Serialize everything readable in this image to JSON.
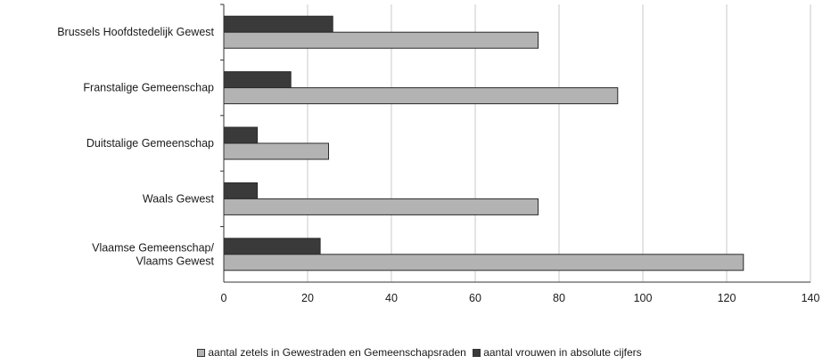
{
  "chart_data": {
    "type": "bar",
    "orientation": "horizontal",
    "categories": [
      "Brussels Hoofdstedelijk Gewest",
      "Franstalige Gemeenschap",
      "Duitstalige Gemeenschap",
      "Waals Gewest",
      "Vlaamse Gemeenschap/ Vlaams Gewest"
    ],
    "category_lines": [
      [
        "Brussels Hoofdstedelijk Gewest"
      ],
      [
        "Franstalige Gemeenschap"
      ],
      [
        "Duitstalige Gemeenschap"
      ],
      [
        "Waals Gewest"
      ],
      [
        "Vlaamse Gemeenschap/",
        "Vlaams Gewest"
      ]
    ],
    "series": [
      {
        "name": "aantal vrouwen in absolute cijfers",
        "values": [
          26,
          16,
          8,
          8,
          23
        ],
        "color": "#3a3a3a"
      },
      {
        "name": "aantal zetels in Gewestraden en Gemeenschapsraden",
        "values": [
          75,
          94,
          25,
          75,
          124
        ],
        "color": "#b3b3b3"
      }
    ],
    "xlim": [
      0,
      140
    ],
    "xticks": [
      0,
      20,
      40,
      60,
      80,
      100,
      120,
      140
    ],
    "grid": true,
    "legend_position": "bottom",
    "legend": [
      {
        "label": "aantal zetels in Gewestraden en Gemeenschapsraden",
        "color": "#b3b3b3"
      },
      {
        "label": "aantal vrouwen in absolute cijfers",
        "color": "#3a3a3a"
      }
    ]
  }
}
